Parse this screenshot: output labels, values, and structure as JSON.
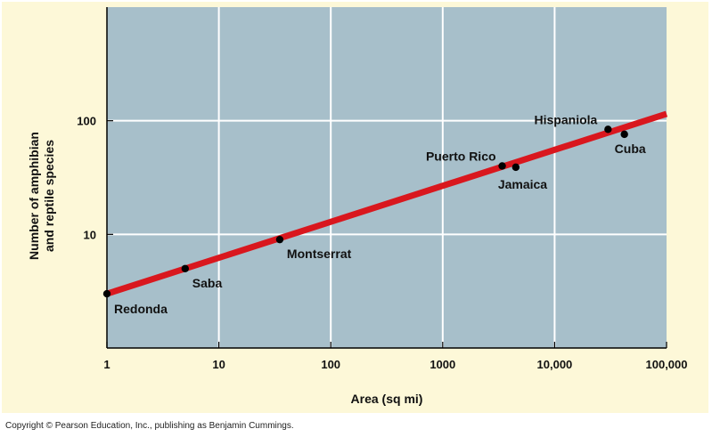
{
  "colors": {
    "background": "#fdf8d8",
    "plot_area": "#a7bfca",
    "grid": "#ffffff",
    "trend_line": "#d9171e",
    "points": "#000000"
  },
  "chart_data": {
    "type": "scatter",
    "title": "",
    "xlabel": "Area  (sq mi)",
    "ylabel_lines": [
      "Number of amphibian",
      "and reptile species"
    ],
    "x_scale": "log",
    "y_scale": "log",
    "xlim": [
      1,
      100000
    ],
    "ylim": [
      1,
      1000
    ],
    "grid": true,
    "x_ticks": [
      {
        "value": 1,
        "label": "1"
      },
      {
        "value": 10,
        "label": "10"
      },
      {
        "value": 100,
        "label": "100"
      },
      {
        "value": 1000,
        "label": "1000"
      },
      {
        "value": 10000,
        "label": "10,000"
      },
      {
        "value": 100000,
        "label": "100,000"
      }
    ],
    "y_ticks": [
      {
        "value": 10,
        "label": "10"
      },
      {
        "value": 100,
        "label": "100"
      }
    ],
    "points": [
      {
        "name": "Redonda",
        "x": 1,
        "y": 3
      },
      {
        "name": "Saba",
        "x": 5,
        "y": 5
      },
      {
        "name": "Montserrat",
        "x": 35,
        "y": 9
      },
      {
        "name": "Puerto Rico",
        "x": 3400,
        "y": 40
      },
      {
        "name": "Jamaica",
        "x": 4500,
        "y": 39
      },
      {
        "name": "Hispaniola",
        "x": 30000,
        "y": 84
      },
      {
        "name": "Cuba",
        "x": 42000,
        "y": 76
      }
    ],
    "trend_line": {
      "x": [
        1,
        100000
      ],
      "y": [
        3,
        115
      ]
    }
  },
  "footer": {
    "copyright": "Copyright © Pearson Education, Inc., publishing as Benjamin Cummings."
  }
}
